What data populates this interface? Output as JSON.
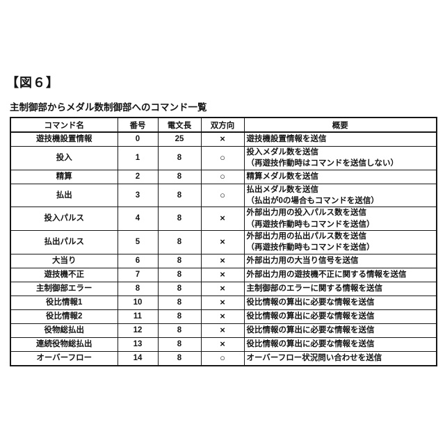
{
  "figure": {
    "label": "【図６】",
    "caption": "主制御部からメダル数制御部へのコマンド一覧"
  },
  "table": {
    "headers": [
      "コマンド名",
      "番号",
      "電文長",
      "双方向",
      "概要"
    ],
    "symbols": {
      "yes": "○",
      "no": "×"
    },
    "rows": [
      {
        "name": "遊技機設置情報",
        "number": "0",
        "length": "25",
        "bidirectional": "×",
        "summary": "遊技機設置情報を送信"
      },
      {
        "name": "投入",
        "number": "1",
        "length": "8",
        "bidirectional": "○",
        "summary": "投入メダル数を送信\n（再遊技作動時はコマンドを送信しない）"
      },
      {
        "name": "精算",
        "number": "2",
        "length": "8",
        "bidirectional": "○",
        "summary": "精算メダル数を送信"
      },
      {
        "name": "払出",
        "number": "3",
        "length": "8",
        "bidirectional": "○",
        "summary": "払出メダル数を送信\n（払出が0の場合もコマンドを送信）"
      },
      {
        "name": "投入パルス",
        "number": "4",
        "length": "8",
        "bidirectional": "×",
        "summary": "外部出力用の投入パルス数を送信\n（再遊技作動時もコマンドを送信）"
      },
      {
        "name": "払出パルス",
        "number": "5",
        "length": "8",
        "bidirectional": "×",
        "summary": "外部出力用の払出パルス数を送信\n（再遊技作動時もコマンドを送信）"
      },
      {
        "name": "大当り",
        "number": "6",
        "length": "8",
        "bidirectional": "×",
        "summary": "外部出力用の大当り信号を送信"
      },
      {
        "name": "遊技機不正",
        "number": "7",
        "length": "8",
        "bidirectional": "×",
        "summary": "外部出力用の遊技機不正に関する情報を送信"
      },
      {
        "name": "主制御部エラー",
        "number": "8",
        "length": "8",
        "bidirectional": "×",
        "summary": "主制御部のエラーに関する情報を送信"
      },
      {
        "name": "役比情報1",
        "number": "10",
        "length": "8",
        "bidirectional": "×",
        "summary": "役比情報の算出に必要な情報を送信"
      },
      {
        "name": "役比情報2",
        "number": "11",
        "length": "8",
        "bidirectional": "×",
        "summary": "役比情報の算出に必要な情報を送信"
      },
      {
        "name": "役物総払出",
        "number": "12",
        "length": "8",
        "bidirectional": "×",
        "summary": "役比情報の算出に必要な情報を送信"
      },
      {
        "name": "連続役物総払出",
        "number": "13",
        "length": "8",
        "bidirectional": "×",
        "summary": "役比情報の算出に必要な情報を送信"
      },
      {
        "name": "オーバーフロー",
        "number": "14",
        "length": "8",
        "bidirectional": "○",
        "summary": "オーバーフロー状況問い合わせを送信"
      }
    ]
  }
}
